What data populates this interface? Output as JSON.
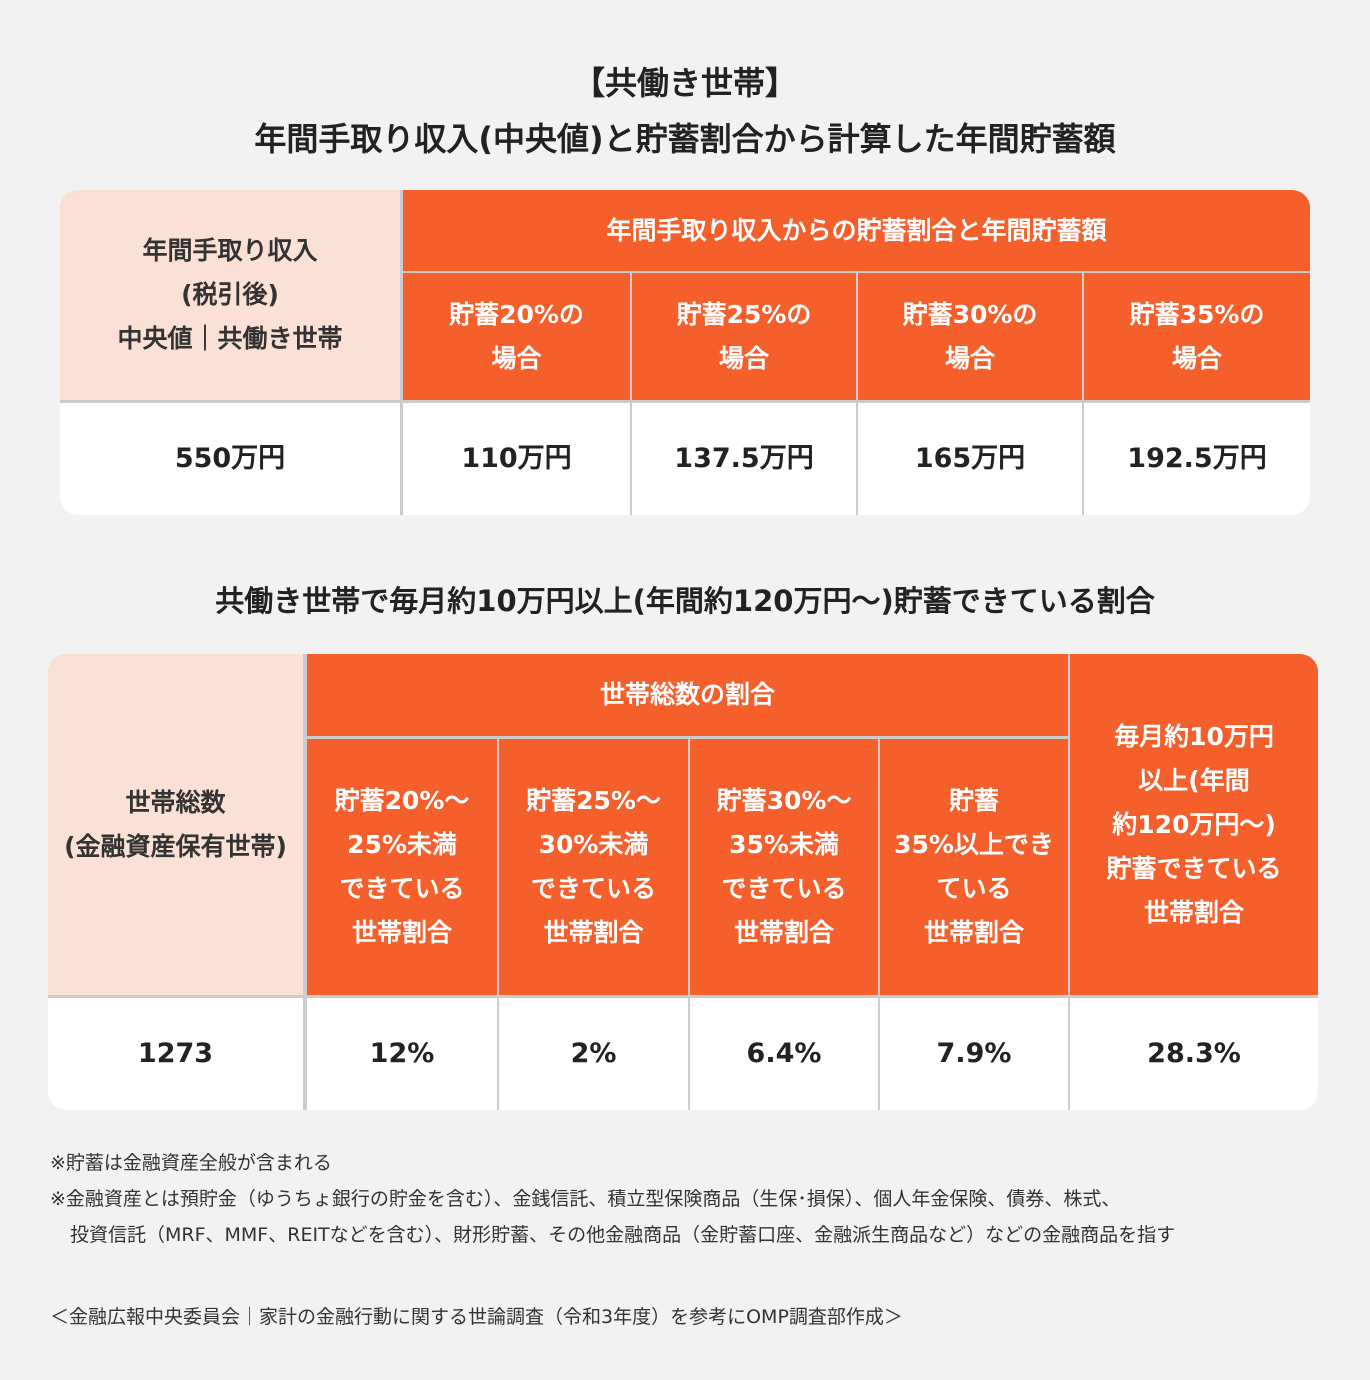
{
  "title": {
    "line1": "【共働き世帯】",
    "line2": "年間手取り収入(中央値)と貯蓄割合から計算した年間貯蓄額"
  },
  "table1": {
    "corner": [
      "年間手取り収入",
      "(税引後)",
      "中央値｜共働き世帯"
    ],
    "group_header": "年間手取り収入からの貯蓄割合と年間貯蓄額",
    "columns": [
      [
        "貯蓄20%の",
        "場合"
      ],
      [
        "貯蓄25%の",
        "場合"
      ],
      [
        "貯蓄30%の",
        "場合"
      ],
      [
        "貯蓄35%の",
        "場合"
      ]
    ],
    "row": [
      "550万円",
      "110万円",
      "137.5万円",
      "165万円",
      "192.5万円"
    ]
  },
  "heading2": "共働き世帯で毎月約10万円以上(年間約120万円〜)貯蓄できている割合",
  "table2": {
    "corner": [
      "世帯総数",
      "(金融資産保有世帯)"
    ],
    "group_header": "世帯総数の割合",
    "columns": [
      [
        "貯蓄20%〜",
        "25%未満",
        "できている",
        "世帯割合"
      ],
      [
        "貯蓄25%〜",
        "30%未満",
        "できている",
        "世帯割合"
      ],
      [
        "貯蓄30%〜",
        "35%未満",
        "できている",
        "世帯割合"
      ],
      [
        "貯蓄",
        "35%以上でき",
        "ている",
        "世帯割合"
      ]
    ],
    "last_header": [
      "毎月約10万円",
      "以上(年間",
      "約120万円〜)",
      "貯蓄できている",
      "世帯割合"
    ],
    "row": [
      "1273",
      "12%",
      "2%",
      "6.4%",
      "7.9%",
      "28.3%"
    ]
  },
  "notes": [
    "※貯蓄は金融資産全般が含まれる",
    "※金融資産とは預貯金（ゆうちょ銀行の貯金を含む）、金銭信託、積立型保険商品（生保･損保）、個人年金保険、債券、株式、",
    "投資信託（MRF、MMF、REITなどを含む）、財形貯蓄、その他金融商品（金貯蓄口座、金融派生商品など）などの金融商品を指す"
  ],
  "source": "＜金融広報中央委員会｜家計の金融行動に関する世論調査（令和3年度）を参考にOMP調査部作成＞"
}
